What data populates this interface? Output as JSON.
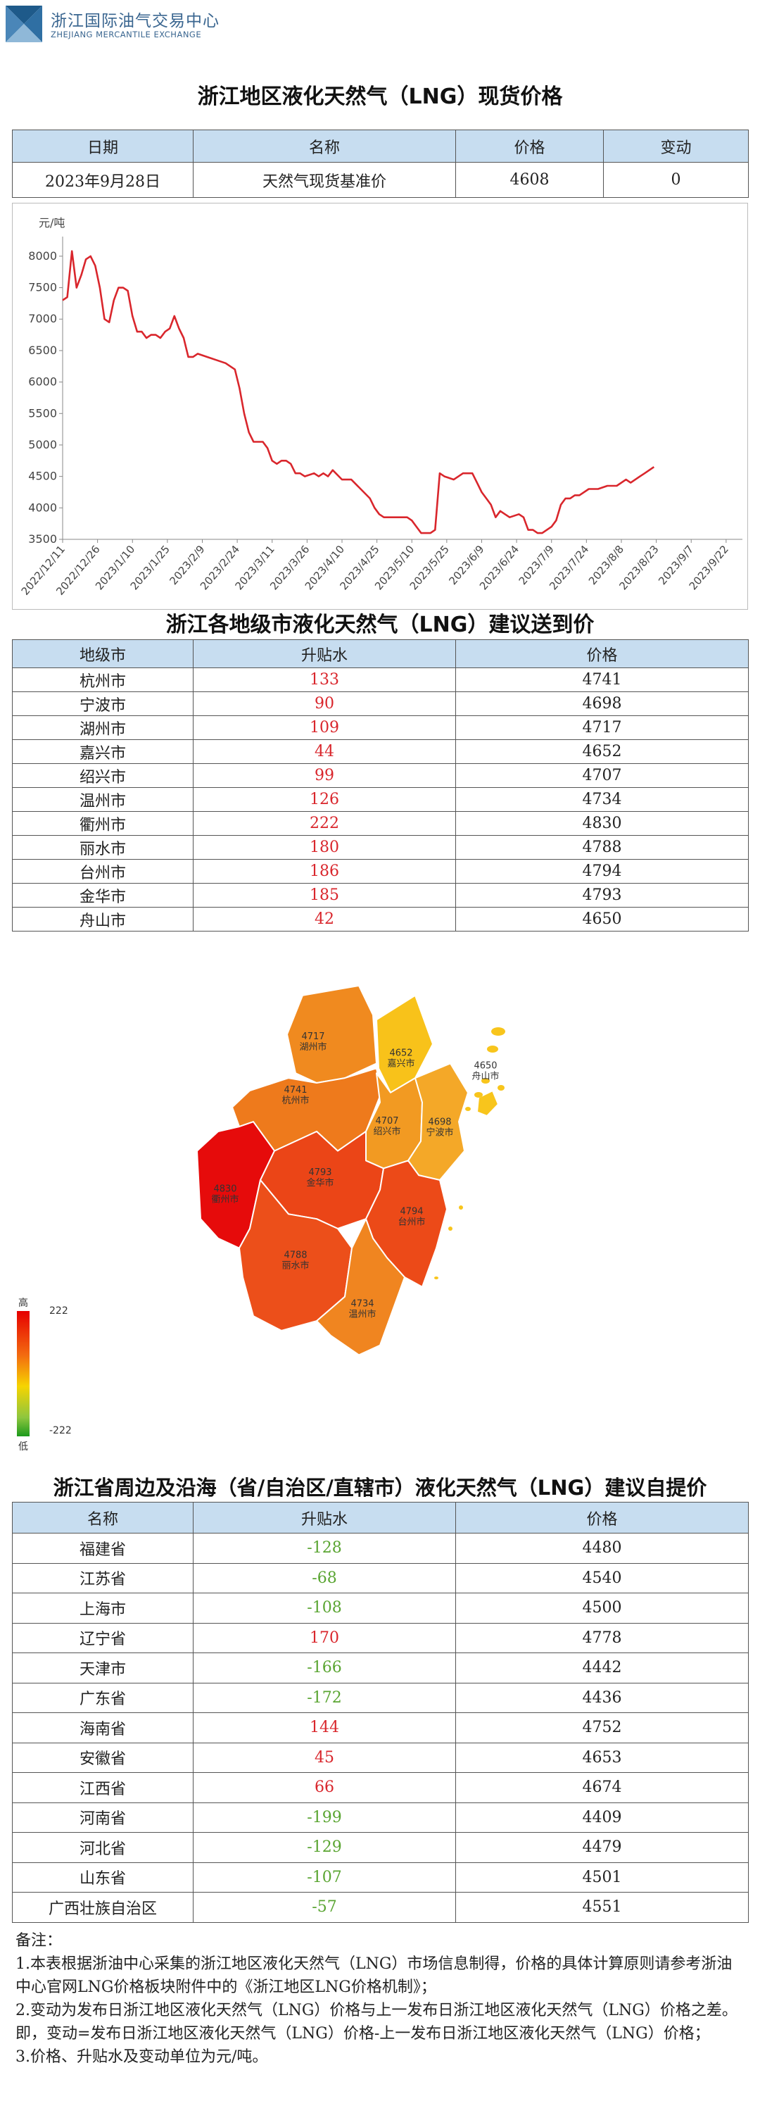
{
  "header": {
    "org_name_cn": "浙江国际油气交易中心",
    "org_name_en": "ZHEJIANG MERCANTILE EXCHANGE",
    "title": "浙江地区液化天然气（LNG）现货价格"
  },
  "spot_table": {
    "headers": [
      "日期",
      "名称",
      "价格",
      "变动"
    ],
    "row": [
      "2023年9月28日",
      "天然气现货基准价",
      "4608",
      "0"
    ]
  },
  "chart_data": {
    "type": "line",
    "title": "",
    "ylabel": "元/吨",
    "xlabel": "",
    "ylim": [
      3500,
      8500
    ],
    "yticks": [
      3500,
      4000,
      4500,
      5000,
      5500,
      6000,
      6500,
      7000,
      7500,
      8000
    ],
    "xticks": [
      "2022/12/11",
      "2022/12/26",
      "2023/1/10",
      "2023/1/25",
      "2023/2/9",
      "2023/2/24",
      "2023/3/11",
      "2023/3/26",
      "2023/4/10",
      "2023/4/25",
      "2023/5/10",
      "2023/5/25",
      "2023/6/9",
      "2023/6/24",
      "2023/7/9",
      "2023/7/24",
      "2023/8/8",
      "2023/8/23",
      "2023/9/7",
      "2023/9/22"
    ],
    "grid": false,
    "line_color": "#d9262c",
    "x_range_days": [
      0,
      292
    ],
    "points": [
      [
        0,
        7300
      ],
      [
        2,
        7350
      ],
      [
        4,
        8080
      ],
      [
        6,
        7500
      ],
      [
        8,
        7700
      ],
      [
        10,
        7950
      ],
      [
        12,
        8000
      ],
      [
        14,
        7850
      ],
      [
        16,
        7500
      ],
      [
        18,
        7000
      ],
      [
        20,
        6950
      ],
      [
        22,
        7300
      ],
      [
        24,
        7500
      ],
      [
        26,
        7500
      ],
      [
        28,
        7450
      ],
      [
        30,
        7050
      ],
      [
        32,
        6800
      ],
      [
        34,
        6800
      ],
      [
        36,
        6700
      ],
      [
        38,
        6750
      ],
      [
        40,
        6750
      ],
      [
        42,
        6700
      ],
      [
        44,
        6800
      ],
      [
        46,
        6850
      ],
      [
        48,
        7050
      ],
      [
        50,
        6850
      ],
      [
        52,
        6700
      ],
      [
        54,
        6400
      ],
      [
        56,
        6400
      ],
      [
        58,
        6450
      ],
      [
        62,
        6400
      ],
      [
        66,
        6350
      ],
      [
        70,
        6300
      ],
      [
        74,
        6200
      ],
      [
        76,
        5900
      ],
      [
        78,
        5500
      ],
      [
        80,
        5200
      ],
      [
        82,
        5050
      ],
      [
        84,
        5050
      ],
      [
        86,
        5050
      ],
      [
        88,
        4950
      ],
      [
        90,
        4750
      ],
      [
        92,
        4700
      ],
      [
        94,
        4750
      ],
      [
        96,
        4750
      ],
      [
        98,
        4700
      ],
      [
        100,
        4550
      ],
      [
        102,
        4550
      ],
      [
        104,
        4500
      ],
      [
        108,
        4550
      ],
      [
        110,
        4500
      ],
      [
        112,
        4550
      ],
      [
        114,
        4500
      ],
      [
        116,
        4600
      ],
      [
        120,
        4450
      ],
      [
        124,
        4450
      ],
      [
        128,
        4300
      ],
      [
        132,
        4150
      ],
      [
        134,
        4000
      ],
      [
        136,
        3900
      ],
      [
        138,
        3850
      ],
      [
        142,
        3850
      ],
      [
        146,
        3850
      ],
      [
        148,
        3850
      ],
      [
        150,
        3800
      ],
      [
        152,
        3700
      ],
      [
        154,
        3600
      ],
      [
        158,
        3600
      ],
      [
        160,
        3650
      ],
      [
        162,
        4550
      ],
      [
        164,
        4500
      ],
      [
        168,
        4450
      ],
      [
        172,
        4550
      ],
      [
        176,
        4550
      ],
      [
        178,
        4400
      ],
      [
        180,
        4250
      ],
      [
        182,
        4150
      ],
      [
        184,
        4050
      ],
      [
        186,
        3850
      ],
      [
        188,
        3950
      ],
      [
        190,
        3900
      ],
      [
        192,
        3850
      ],
      [
        196,
        3900
      ],
      [
        198,
        3850
      ],
      [
        200,
        3650
      ],
      [
        202,
        3650
      ],
      [
        204,
        3600
      ],
      [
        206,
        3600
      ],
      [
        210,
        3700
      ],
      [
        212,
        3800
      ],
      [
        214,
        4050
      ],
      [
        216,
        4150
      ],
      [
        218,
        4150
      ],
      [
        220,
        4200
      ],
      [
        222,
        4200
      ],
      [
        226,
        4300
      ],
      [
        230,
        4300
      ],
      [
        234,
        4350
      ],
      [
        238,
        4350
      ],
      [
        242,
        4450
      ],
      [
        244,
        4400
      ],
      [
        246,
        4450
      ],
      [
        248,
        4500
      ],
      [
        250,
        4550
      ],
      [
        252,
        4600
      ],
      [
        254,
        4650
      ]
    ]
  },
  "city_table": {
    "title": "浙江各地级市液化天然气（LNG）建议送到价",
    "headers": [
      "地级市",
      "升贴水",
      "价格"
    ],
    "rows": [
      [
        "杭州市",
        "133",
        "4741"
      ],
      [
        "宁波市",
        "90",
        "4698"
      ],
      [
        "湖州市",
        "109",
        "4717"
      ],
      [
        "嘉兴市",
        "44",
        "4652"
      ],
      [
        "绍兴市",
        "99",
        "4707"
      ],
      [
        "温州市",
        "126",
        "4734"
      ],
      [
        "衢州市",
        "222",
        "4830"
      ],
      [
        "丽水市",
        "180",
        "4788"
      ],
      [
        "台州市",
        "186",
        "4794"
      ],
      [
        "金华市",
        "185",
        "4793"
      ],
      [
        "舟山市",
        "42",
        "4650"
      ]
    ]
  },
  "map": {
    "legend_high": "高",
    "legend_low": "低",
    "legend_max": "222",
    "legend_min": "-222",
    "regions": [
      {
        "name": "湖州市",
        "price": "4717",
        "color": "#f08a1f"
      },
      {
        "name": "嘉兴市",
        "price": "4652",
        "color": "#f8c21a"
      },
      {
        "name": "杭州市",
        "price": "4741",
        "color": "#ee7a1c"
      },
      {
        "name": "绍兴市",
        "price": "4707",
        "color": "#f29a22"
      },
      {
        "name": "宁波市",
        "price": "4698",
        "color": "#f4a828"
      },
      {
        "name": "舟山市",
        "price": "4650",
        "color": "#f8c51c"
      },
      {
        "name": "衢州市",
        "price": "4830",
        "color": "#e60b0b"
      },
      {
        "name": "金华市",
        "price": "4793",
        "color": "#eb4517"
      },
      {
        "name": "台州市",
        "price": "4794",
        "color": "#ec4a18"
      },
      {
        "name": "丽水市",
        "price": "4788",
        "color": "#ec4f1a"
      },
      {
        "name": "温州市",
        "price": "4734",
        "color": "#f08520"
      }
    ]
  },
  "province_table": {
    "title": "浙江省周边及沿海（省/自治区/直辖市）液化天然气（LNG）建议自提价",
    "headers": [
      "名称",
      "升贴水",
      "价格"
    ],
    "rows": [
      [
        "福建省",
        "-128",
        "4480"
      ],
      [
        "江苏省",
        "-68",
        "4540"
      ],
      [
        "上海市",
        "-108",
        "4500"
      ],
      [
        "辽宁省",
        "170",
        "4778"
      ],
      [
        "天津市",
        "-166",
        "4442"
      ],
      [
        "广东省",
        "-172",
        "4436"
      ],
      [
        "海南省",
        "144",
        "4752"
      ],
      [
        "安徽省",
        "45",
        "4653"
      ],
      [
        "江西省",
        "66",
        "4674"
      ],
      [
        "河南省",
        "-199",
        "4409"
      ],
      [
        "河北省",
        "-129",
        "4479"
      ],
      [
        "山东省",
        "-107",
        "4501"
      ],
      [
        "广西壮族自治区",
        "-57",
        "4551"
      ]
    ]
  },
  "notes": {
    "heading": "备注：",
    "lines": [
      "1.本表根据浙油中心采集的浙江地区液化天然气（LNG）市场信息制得，价格的具体计算原则请参考浙油中心官网LNG价格板块附件中的《浙江地区LNG价格机制》；",
      "2.变动为发布日浙江地区液化天然气（LNG）价格与上一发布日浙江地区液化天然气（LNG）价格之差。即，变动=发布日浙江地区液化天然气（LNG）价格-上一发布日浙江地区液化天然气（LNG）价格；",
      "3.价格、升贴水及变动单位为元/吨。"
    ]
  }
}
